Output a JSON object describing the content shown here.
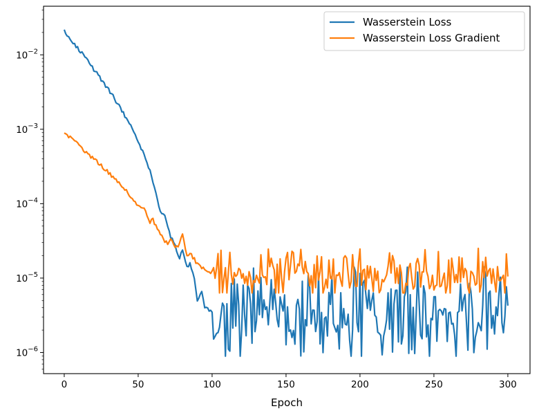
{
  "chart_data": {
    "type": "line",
    "title": "",
    "xlabel": "Epoch",
    "ylabel": "",
    "yscale": "log",
    "xlim": [
      -14,
      315
    ],
    "ylim": [
      5.2e-07,
      0.045
    ],
    "xticks": [
      0,
      50,
      100,
      150,
      200,
      250,
      300
    ],
    "yticks": [
      {
        "value": 1e-06,
        "base": "10",
        "exp": "−6"
      },
      {
        "value": 1e-05,
        "base": "10",
        "exp": "−5"
      },
      {
        "value": 0.0001,
        "base": "10",
        "exp": "−4"
      },
      {
        "value": 0.001,
        "base": "10",
        "exp": "−3"
      },
      {
        "value": 0.01,
        "base": "10",
        "exp": "−2"
      }
    ],
    "legend_position": "top-right",
    "series": [
      {
        "name": "Wasserstein Loss",
        "color": "#1f77b4",
        "anchor_x": [
          0,
          5,
          10,
          15,
          20,
          25,
          30,
          35,
          40,
          45,
          50,
          55,
          58,
          60,
          63,
          65,
          68,
          70,
          72,
          75,
          78,
          80,
          83,
          85,
          88,
          90,
          93,
          95,
          100
        ],
        "anchor_logy": [
          -1.68,
          -1.8,
          -1.93,
          -2.06,
          -2.2,
          -2.33,
          -2.47,
          -2.62,
          -2.78,
          -2.95,
          -3.16,
          -3.4,
          -3.55,
          -3.72,
          -3.95,
          -4.1,
          -4.15,
          -4.3,
          -4.45,
          -4.55,
          -4.75,
          -4.6,
          -4.85,
          -4.8,
          -5.0,
          -5.3,
          -5.2,
          -5.4,
          -5.45
        ],
        "noise_start": 101,
        "noise_end": 300,
        "noise_seed": 7,
        "noise_logy_min": -6.05,
        "noise_logy_max": -4.85,
        "noise_logy_center": -5.55
      },
      {
        "name": "Wasserstein Loss Gradient",
        "color": "#ff7f0e",
        "anchor_x": [
          0,
          5,
          10,
          15,
          20,
          25,
          30,
          35,
          40,
          45,
          50,
          55,
          58,
          60,
          63,
          65,
          68,
          70,
          72,
          75,
          78,
          80,
          83,
          85,
          88,
          90,
          93,
          95,
          100
        ],
        "anchor_logy": [
          -3.04,
          -3.13,
          -3.22,
          -3.31,
          -3.4,
          -3.49,
          -3.58,
          -3.68,
          -3.79,
          -3.9,
          -4.02,
          -4.1,
          -4.25,
          -4.22,
          -4.35,
          -4.4,
          -4.5,
          -4.55,
          -4.45,
          -4.6,
          -4.55,
          -4.4,
          -4.7,
          -4.65,
          -4.75,
          -4.82,
          -4.85,
          -4.9,
          -4.92
        ],
        "noise_start": 101,
        "noise_end": 300,
        "noise_seed": 42,
        "noise_logy_min": -5.2,
        "noise_logy_max": -4.6,
        "noise_logy_center": -4.98
      }
    ]
  }
}
